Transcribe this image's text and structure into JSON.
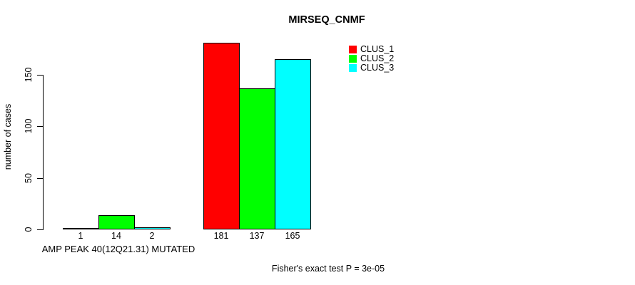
{
  "chart_data": {
    "type": "bar",
    "title": "MIRSEQ_CNMF",
    "ylabel": "number of cases",
    "xlabel": "",
    "group_labels": [
      "AMP PEAK 40(12Q21.31) MUTATED",
      ""
    ],
    "series": [
      {
        "name": "CLUS_1",
        "color": "#ff0000",
        "values": [
          1,
          181
        ]
      },
      {
        "name": "CLUS_2",
        "color": "#00ff00",
        "values": [
          14,
          137
        ]
      },
      {
        "name": "CLUS_3",
        "color": "#00ffff",
        "values": [
          2,
          165
        ]
      }
    ],
    "yticks": [
      0,
      50,
      100,
      150
    ],
    "ylim": [
      0,
      150
    ],
    "bar_border_color": "#000000",
    "axis_color": "#000000",
    "grid": false,
    "legend_position": "top-right",
    "annotation": "Fisher's exact test P = 3e-05"
  }
}
